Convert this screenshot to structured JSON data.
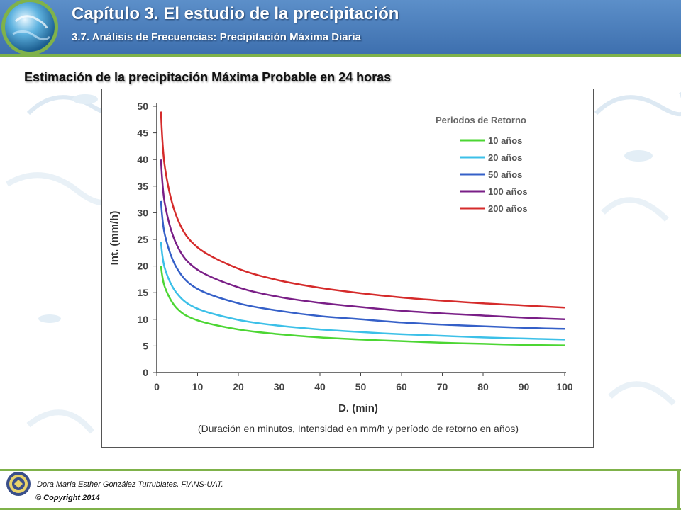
{
  "header": {
    "title": "Capítulo 3. El estudio de la precipitación",
    "subtitle": "3.7. Análisis de Frecuencias: Precipitación Máxima Diaria"
  },
  "slide": {
    "title": "Estimación de la precipitación Máxima Probable en 24 horas"
  },
  "footer": {
    "author": "Dora María Esther González Turrubiates. FIANS-UAT.",
    "copyright": "© Copyright 2014"
  },
  "colors": {
    "header": "#4a7dbd",
    "accent_green": "#7fb24a"
  },
  "icons": [
    "globe-logo-icon",
    "university-seal-icon"
  ],
  "chart_data": {
    "type": "line",
    "xlabel": "D. (min)",
    "ylabel": "Int. (mm/h)",
    "caption": "(Duración en minutos, Intensidad en mm/h y período de retorno en años)",
    "xlim": [
      0,
      100
    ],
    "ylim": [
      0,
      50
    ],
    "xticks": [
      0,
      10,
      20,
      30,
      40,
      50,
      60,
      70,
      80,
      90,
      100
    ],
    "yticks": [
      0,
      5,
      10,
      15,
      20,
      25,
      30,
      35,
      40,
      45,
      50
    ],
    "grid": false,
    "legend": {
      "title": "Periodos de Retorno",
      "position": "top-right"
    },
    "x": [
      1,
      2,
      5,
      10,
      20,
      30,
      40,
      50,
      60,
      70,
      80,
      90,
      100
    ],
    "series": [
      {
        "name": "10",
        "unit": "años",
        "color": "#4cd633",
        "values": [
          20.0,
          16.0,
          12.0,
          9.8,
          8.1,
          7.2,
          6.6,
          6.2,
          5.9,
          5.6,
          5.4,
          5.2,
          5.1
        ]
      },
      {
        "name": "20",
        "unit": "años",
        "color": "#3cc0e8",
        "values": [
          24.5,
          19.5,
          14.8,
          12.0,
          9.9,
          8.8,
          8.1,
          7.6,
          7.2,
          6.9,
          6.6,
          6.4,
          6.2
        ]
      },
      {
        "name": "50",
        "unit": "años",
        "color": "#3560c8",
        "values": [
          32.2,
          25.8,
          19.5,
          15.7,
          13.0,
          11.6,
          10.6,
          10.0,
          9.4,
          9.0,
          8.7,
          8.4,
          8.2
        ]
      },
      {
        "name": "100",
        "unit": "años",
        "color": "#7a1f87",
        "values": [
          40.0,
          31.6,
          23.8,
          19.3,
          16.0,
          14.2,
          13.1,
          12.3,
          11.6,
          11.1,
          10.7,
          10.3,
          10.0
        ]
      },
      {
        "name": "200",
        "unit": "años",
        "color": "#d52b2b",
        "values": [
          49.0,
          38.5,
          29.0,
          23.5,
          19.5,
          17.3,
          15.9,
          14.9,
          14.1,
          13.5,
          13.0,
          12.6,
          12.2
        ]
      }
    ]
  }
}
